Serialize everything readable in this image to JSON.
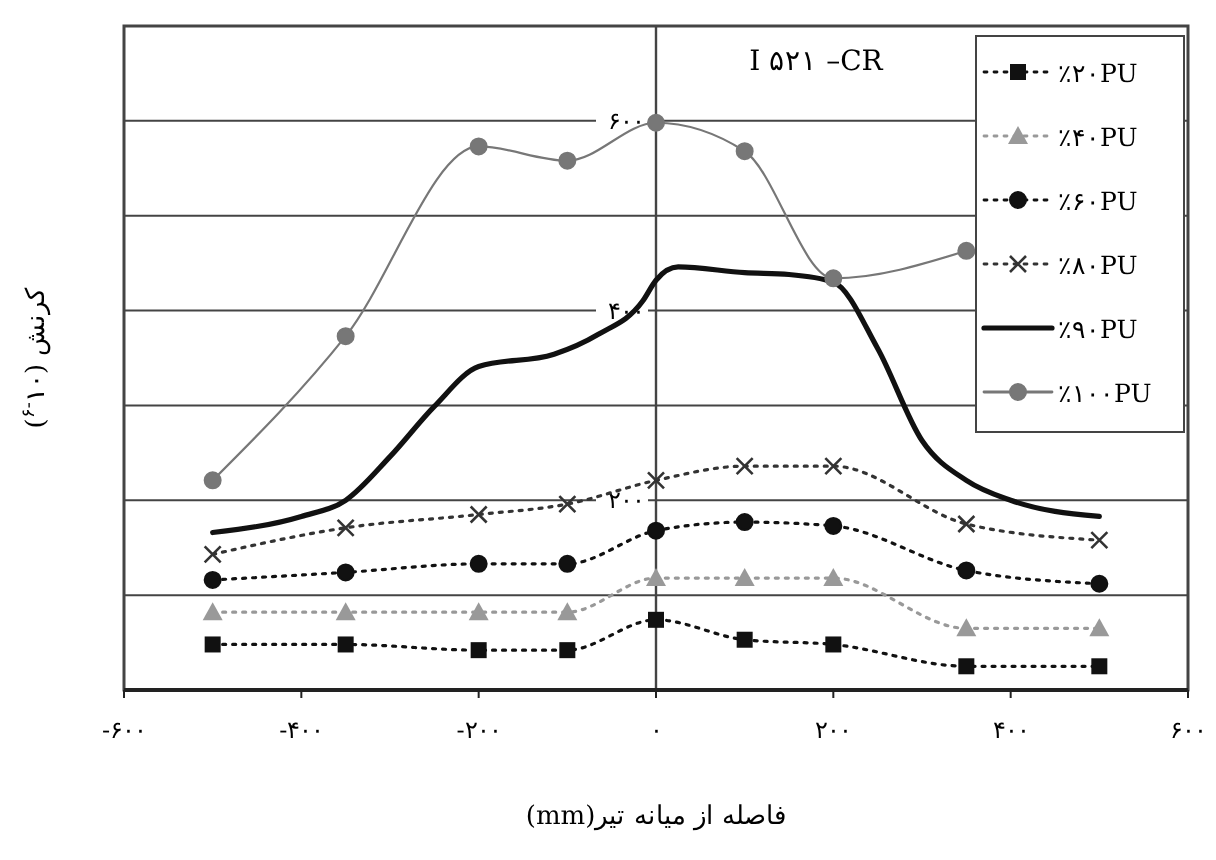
{
  "chart_data": {
    "type": "line",
    "title": "I ۵۲۱ –CR",
    "xlabel": "فاصله از میانه تیر(mm)",
    "ylabel": "کرنش (۱۰$^{-۶}$)",
    "xlim": [
      -600,
      600
    ],
    "xticks": [
      {
        "value": -600,
        "label": "-۶۰۰"
      },
      {
        "value": -400,
        "label": "-۴۰۰"
      },
      {
        "value": -200,
        "label": "-۲۰۰"
      },
      {
        "value": 0,
        "label": "۰"
      },
      {
        "value": 200,
        "label": "۲۰۰"
      },
      {
        "value": 400,
        "label": "۴۰۰"
      },
      {
        "value": 600,
        "label": "۶۰۰"
      }
    ],
    "ylim": [
      0,
      700
    ],
    "yticks": [
      {
        "value": 100,
        "label": null
      },
      {
        "value": 200,
        "label": "۲۰۰"
      },
      {
        "value": 300,
        "label": null
      },
      {
        "value": 400,
        "label": "۴۰۰"
      },
      {
        "value": 500,
        "label": null
      },
      {
        "value": 600,
        "label": "۶۰۰"
      },
      {
        "value": 700,
        "label": null
      }
    ],
    "grid": "y",
    "legend": "top right",
    "x": [
      -500,
      -350,
      -200,
      -100,
      0,
      100,
      200,
      350,
      500
    ],
    "series": [
      {
        "name": "٪۲۰PU",
        "color": "#111111",
        "marker": "square",
        "line_style": "dotted",
        "values": [
          48,
          48,
          42,
          42,
          74,
          53,
          48,
          25,
          25
        ]
      },
      {
        "name": "٪۴۰PU",
        "color": "#999999",
        "marker": "triangle",
        "line_style": "dotted",
        "values": [
          82,
          82,
          82,
          82,
          118,
          118,
          118,
          65,
          65
        ]
      },
      {
        "name": "٪۶۰PU",
        "color": "#111111",
        "marker": "circle",
        "line_style": "dotted",
        "values": [
          116,
          124,
          133,
          133,
          168,
          177,
          173,
          126,
          112
        ]
      },
      {
        "name": "٪۸۰PU",
        "color": "#333333",
        "marker": "cross",
        "line_style": "dotted",
        "values": [
          143,
          171,
          185,
          196,
          221,
          236,
          236,
          175,
          158
        ]
      },
      {
        "name": "٪۹۰PU",
        "color": "#111111",
        "marker": "none",
        "line_style": "solid",
        "x": [
          -500,
          -400,
          -350,
          -300,
          -250,
          -200,
          -115,
          -65,
          -15,
          0,
          25,
          100,
          150,
          200,
          250,
          300,
          350,
          400,
          500
        ],
        "values": [
          166,
          183,
          200,
          246,
          299,
          341,
          354,
          375,
          410,
          432,
          446,
          440,
          438,
          430,
          360,
          263,
          221,
          200,
          183
        ]
      },
      {
        "name": "٪۱۰۰PU",
        "color": "#777777",
        "marker": "circle",
        "line_style": "solid",
        "values": [
          221,
          373,
          573,
          558,
          598,
          568,
          434,
          463,
          null
        ]
      }
    ]
  }
}
